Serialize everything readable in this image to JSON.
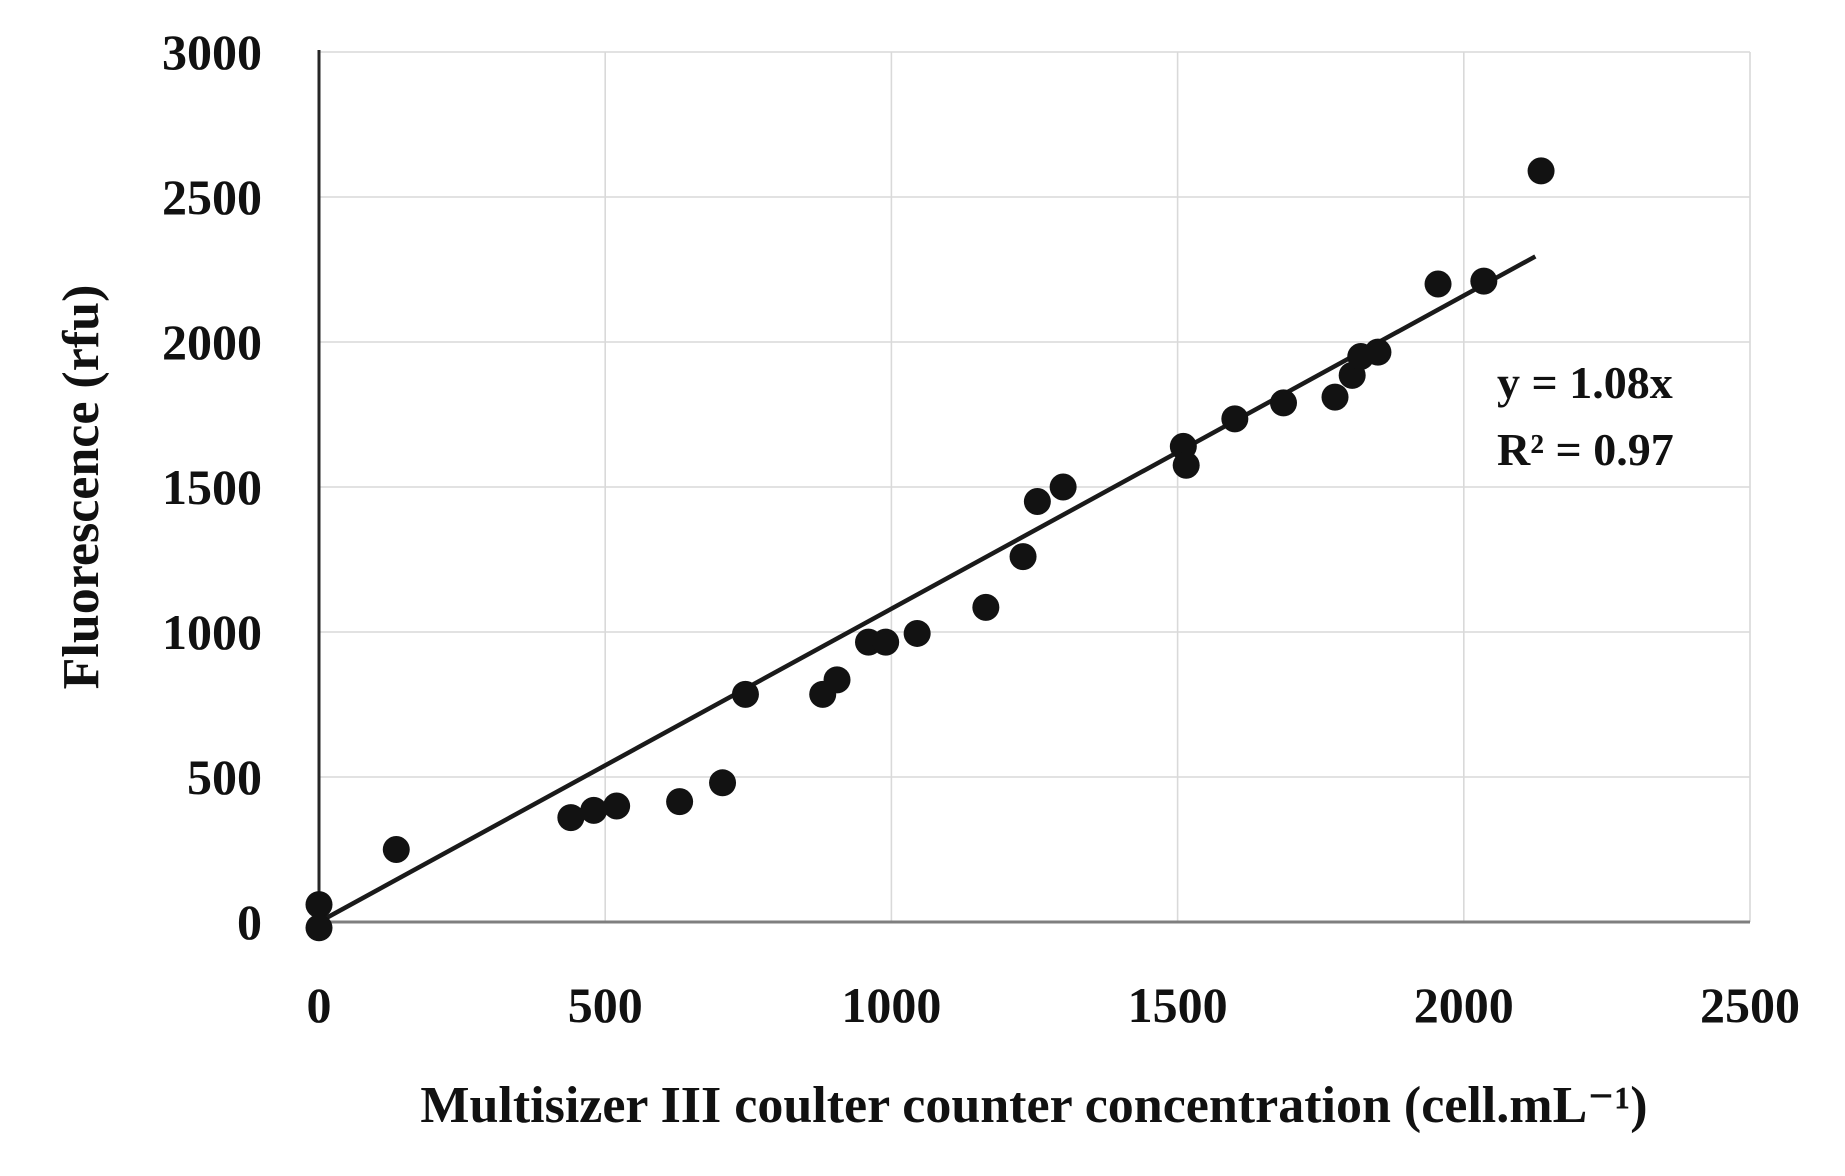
{
  "chart_data": {
    "type": "scatter",
    "title": "",
    "xlabel": "Multisizer III coulter counter concentration (cell.mL⁻¹)",
    "ylabel": "Fluorescence (rfu)",
    "xlim": [
      0,
      2500
    ],
    "ylim": [
      0,
      3000
    ],
    "x_ticks": [
      0,
      500,
      1000,
      1500,
      2000,
      2500
    ],
    "y_ticks": [
      0,
      500,
      1000,
      1500,
      2000,
      2500,
      3000
    ],
    "grid": true,
    "legend": false,
    "marker": "filled-black-circle",
    "points": [
      [
        0,
        60
      ],
      [
        0,
        -20
      ],
      [
        135,
        250
      ],
      [
        440,
        360
      ],
      [
        480,
        385
      ],
      [
        520,
        400
      ],
      [
        630,
        415
      ],
      [
        705,
        480
      ],
      [
        745,
        785
      ],
      [
        880,
        785
      ],
      [
        905,
        835
      ],
      [
        960,
        965
      ],
      [
        990,
        965
      ],
      [
        1045,
        995
      ],
      [
        1165,
        1085
      ],
      [
        1230,
        1260
      ],
      [
        1255,
        1450
      ],
      [
        1300,
        1500
      ],
      [
        1510,
        1640
      ],
      [
        1515,
        1575
      ],
      [
        1600,
        1735
      ],
      [
        1685,
        1790
      ],
      [
        1775,
        1810
      ],
      [
        1805,
        1885
      ],
      [
        1820,
        1950
      ],
      [
        1850,
        1965
      ],
      [
        1955,
        2200
      ],
      [
        2035,
        2210
      ],
      [
        2135,
        2590
      ]
    ],
    "trendline": {
      "slope": 1.08,
      "x_range": [
        0,
        2125
      ],
      "equation": "y = 1.08x",
      "r_squared": "R² = 0.97"
    },
    "colors": {
      "point": "#121212",
      "trendline": "#1a1a1a",
      "gridline": "#d9d9d9",
      "x_axis": "#7f7f7f",
      "y_axis": "#262626",
      "text": "#111111"
    }
  }
}
